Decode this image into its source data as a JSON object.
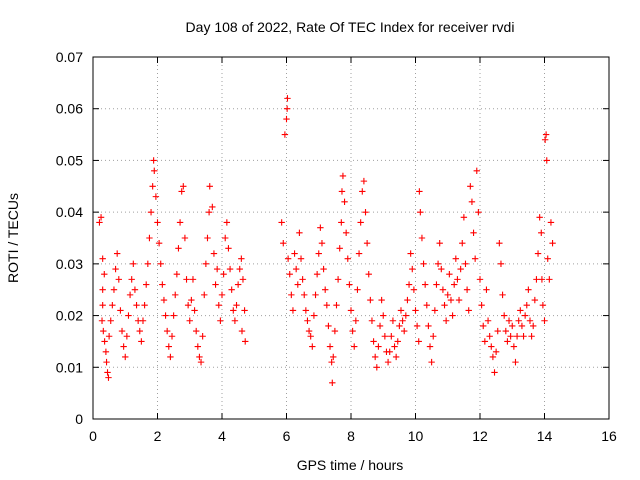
{
  "chart_data": {
    "type": "scatter",
    "title": "Day 108 of 2022, Rate Of TEC Index for receiver rvdi",
    "xlabel": "GPS time / hours",
    "ylabel": "ROTI / TECUs",
    "xlim": [
      0,
      16
    ],
    "ylim": [
      0,
      0.07
    ],
    "xticks": [
      0,
      2,
      4,
      6,
      8,
      10,
      12,
      14,
      16
    ],
    "yticks": [
      0,
      0.01,
      0.02,
      0.03,
      0.04,
      0.05,
      0.06,
      0.07
    ],
    "xtick_labels": [
      "0",
      "2",
      "4",
      "6",
      "8",
      "10",
      "12",
      "14",
      "16"
    ],
    "ytick_labels": [
      "0",
      "0.01",
      "0.02",
      "0.03",
      "0.04",
      "0.05",
      "0.06",
      "0.07"
    ],
    "grid": true,
    "marker": "plus",
    "color": "#ff0000",
    "series": [
      {
        "name": "ROTI",
        "points": [
          [
            0.2,
            0.038
          ],
          [
            0.25,
            0.039
          ],
          [
            0.3,
            0.031
          ],
          [
            0.35,
            0.028
          ],
          [
            0.3,
            0.025
          ],
          [
            0.3,
            0.022
          ],
          [
            0.28,
            0.019
          ],
          [
            0.32,
            0.017
          ],
          [
            0.36,
            0.015
          ],
          [
            0.4,
            0.013
          ],
          [
            0.42,
            0.011
          ],
          [
            0.45,
            0.009
          ],
          [
            0.48,
            0.008
          ],
          [
            0.5,
            0.016
          ],
          [
            0.55,
            0.019
          ],
          [
            0.6,
            0.022
          ],
          [
            0.65,
            0.025
          ],
          [
            0.7,
            0.029
          ],
          [
            0.75,
            0.032
          ],
          [
            0.8,
            0.027
          ],
          [
            0.85,
            0.021
          ],
          [
            0.9,
            0.017
          ],
          [
            0.95,
            0.014
          ],
          [
            1.0,
            0.012
          ],
          [
            1.05,
            0.016
          ],
          [
            1.1,
            0.02
          ],
          [
            1.15,
            0.024
          ],
          [
            1.2,
            0.027
          ],
          [
            1.25,
            0.03
          ],
          [
            1.3,
            0.025
          ],
          [
            1.35,
            0.022
          ],
          [
            1.4,
            0.019
          ],
          [
            1.45,
            0.017
          ],
          [
            1.5,
            0.015
          ],
          [
            1.55,
            0.019
          ],
          [
            1.6,
            0.022
          ],
          [
            1.65,
            0.026
          ],
          [
            1.7,
            0.03
          ],
          [
            1.75,
            0.035
          ],
          [
            1.8,
            0.04
          ],
          [
            1.85,
            0.045
          ],
          [
            1.88,
            0.05
          ],
          [
            1.9,
            0.048
          ],
          [
            1.95,
            0.043
          ],
          [
            2.0,
            0.038
          ],
          [
            2.05,
            0.034
          ],
          [
            2.1,
            0.03
          ],
          [
            2.15,
            0.026
          ],
          [
            2.2,
            0.023
          ],
          [
            2.25,
            0.02
          ],
          [
            2.3,
            0.017
          ],
          [
            2.35,
            0.014
          ],
          [
            2.4,
            0.012
          ],
          [
            2.45,
            0.016
          ],
          [
            2.5,
            0.02
          ],
          [
            2.55,
            0.024
          ],
          [
            2.6,
            0.028
          ],
          [
            2.65,
            0.033
          ],
          [
            2.7,
            0.038
          ],
          [
            2.75,
            0.044
          ],
          [
            2.8,
            0.045
          ],
          [
            2.85,
            0.035
          ],
          [
            2.9,
            0.027
          ],
          [
            2.95,
            0.022
          ],
          [
            3.0,
            0.019
          ],
          [
            3.05,
            0.023
          ],
          [
            3.1,
            0.027
          ],
          [
            3.15,
            0.021
          ],
          [
            3.2,
            0.017
          ],
          [
            3.25,
            0.014
          ],
          [
            3.3,
            0.012
          ],
          [
            3.35,
            0.011
          ],
          [
            3.4,
            0.016
          ],
          [
            3.45,
            0.024
          ],
          [
            3.5,
            0.03
          ],
          [
            3.55,
            0.035
          ],
          [
            3.6,
            0.04
          ],
          [
            3.62,
            0.045
          ],
          [
            3.7,
            0.041
          ],
          [
            3.75,
            0.032
          ],
          [
            3.8,
            0.026
          ],
          [
            3.85,
            0.029
          ],
          [
            3.9,
            0.022
          ],
          [
            3.95,
            0.019
          ],
          [
            4.0,
            0.024
          ],
          [
            4.05,
            0.028
          ],
          [
            4.1,
            0.035
          ],
          [
            4.15,
            0.038
          ],
          [
            4.2,
            0.033
          ],
          [
            4.25,
            0.029
          ],
          [
            4.3,
            0.025
          ],
          [
            4.35,
            0.021
          ],
          [
            4.4,
            0.019
          ],
          [
            4.45,
            0.022
          ],
          [
            4.5,
            0.026
          ],
          [
            4.55,
            0.029
          ],
          [
            4.6,
            0.031
          ],
          [
            4.62,
            0.017
          ],
          [
            4.65,
            0.027
          ],
          [
            4.7,
            0.021
          ],
          [
            4.72,
            0.015
          ],
          [
            5.85,
            0.038
          ],
          [
            5.9,
            0.034
          ],
          [
            5.95,
            0.055
          ],
          [
            6.0,
            0.058
          ],
          [
            6.02,
            0.06
          ],
          [
            6.03,
            0.062
          ],
          [
            6.05,
            0.031
          ],
          [
            6.1,
            0.028
          ],
          [
            6.15,
            0.024
          ],
          [
            6.2,
            0.021
          ],
          [
            6.25,
            0.032
          ],
          [
            6.3,
            0.029
          ],
          [
            6.35,
            0.026
          ],
          [
            6.4,
            0.036
          ],
          [
            6.45,
            0.031
          ],
          [
            6.5,
            0.027
          ],
          [
            6.55,
            0.024
          ],
          [
            6.6,
            0.021
          ],
          [
            6.65,
            0.019
          ],
          [
            6.7,
            0.017
          ],
          [
            6.75,
            0.016
          ],
          [
            6.8,
            0.014
          ],
          [
            6.85,
            0.02
          ],
          [
            6.9,
            0.024
          ],
          [
            6.95,
            0.028
          ],
          [
            7.0,
            0.032
          ],
          [
            7.05,
            0.037
          ],
          [
            7.1,
            0.034
          ],
          [
            7.15,
            0.029
          ],
          [
            7.2,
            0.025
          ],
          [
            7.25,
            0.022
          ],
          [
            7.3,
            0.018
          ],
          [
            7.35,
            0.014
          ],
          [
            7.4,
            0.011
          ],
          [
            7.42,
            0.007
          ],
          [
            7.45,
            0.012
          ],
          [
            7.5,
            0.017
          ],
          [
            7.55,
            0.022
          ],
          [
            7.6,
            0.027
          ],
          [
            7.65,
            0.033
          ],
          [
            7.7,
            0.038
          ],
          [
            7.72,
            0.044
          ],
          [
            7.75,
            0.047
          ],
          [
            7.8,
            0.042
          ],
          [
            7.85,
            0.036
          ],
          [
            7.9,
            0.031
          ],
          [
            7.95,
            0.026
          ],
          [
            8.0,
            0.021
          ],
          [
            8.05,
            0.017
          ],
          [
            8.1,
            0.014
          ],
          [
            8.15,
            0.019
          ],
          [
            8.2,
            0.025
          ],
          [
            8.25,
            0.032
          ],
          [
            8.3,
            0.038
          ],
          [
            8.35,
            0.044
          ],
          [
            8.4,
            0.046
          ],
          [
            8.45,
            0.04
          ],
          [
            8.5,
            0.034
          ],
          [
            8.55,
            0.028
          ],
          [
            8.6,
            0.023
          ],
          [
            8.65,
            0.019
          ],
          [
            8.7,
            0.015
          ],
          [
            8.75,
            0.012
          ],
          [
            8.8,
            0.01
          ],
          [
            8.85,
            0.014
          ],
          [
            8.9,
            0.018
          ],
          [
            8.95,
            0.023
          ],
          [
            9.0,
            0.02
          ],
          [
            9.05,
            0.016
          ],
          [
            9.1,
            0.013
          ],
          [
            9.15,
            0.011
          ],
          [
            9.2,
            0.013
          ],
          [
            9.25,
            0.016
          ],
          [
            9.3,
            0.019
          ],
          [
            9.35,
            0.014
          ],
          [
            9.4,
            0.012
          ],
          [
            9.45,
            0.015
          ],
          [
            9.5,
            0.018
          ],
          [
            9.55,
            0.021
          ],
          [
            9.6,
            0.019
          ],
          [
            9.65,
            0.017
          ],
          [
            9.7,
            0.02
          ],
          [
            9.75,
            0.023
          ],
          [
            9.8,
            0.026
          ],
          [
            9.85,
            0.032
          ],
          [
            9.9,
            0.029
          ],
          [
            9.95,
            0.025
          ],
          [
            10.0,
            0.021
          ],
          [
            10.05,
            0.018
          ],
          [
            10.1,
            0.015
          ],
          [
            10.12,
            0.044
          ],
          [
            10.15,
            0.04
          ],
          [
            10.2,
            0.035
          ],
          [
            10.25,
            0.03
          ],
          [
            10.3,
            0.026
          ],
          [
            10.35,
            0.022
          ],
          [
            10.4,
            0.018
          ],
          [
            10.45,
            0.014
          ],
          [
            10.5,
            0.011
          ],
          [
            10.55,
            0.016
          ],
          [
            10.6,
            0.021
          ],
          [
            10.65,
            0.026
          ],
          [
            10.7,
            0.03
          ],
          [
            10.75,
            0.034
          ],
          [
            10.8,
            0.029
          ],
          [
            10.85,
            0.025
          ],
          [
            10.9,
            0.022
          ],
          [
            10.95,
            0.019
          ],
          [
            11.0,
            0.024
          ],
          [
            11.05,
            0.028
          ],
          [
            11.1,
            0.023
          ],
          [
            11.15,
            0.02
          ],
          [
            11.2,
            0.026
          ],
          [
            11.25,
            0.031
          ],
          [
            11.3,
            0.027
          ],
          [
            11.35,
            0.023
          ],
          [
            11.4,
            0.029
          ],
          [
            11.45,
            0.034
          ],
          [
            11.5,
            0.039
          ],
          [
            11.55,
            0.03
          ],
          [
            11.6,
            0.025
          ],
          [
            11.65,
            0.021
          ],
          [
            11.7,
            0.045
          ],
          [
            11.75,
            0.042
          ],
          [
            11.8,
            0.036
          ],
          [
            11.85,
            0.031
          ],
          [
            11.9,
            0.048
          ],
          [
            11.95,
            0.04
          ],
          [
            12.0,
            0.027
          ],
          [
            12.05,
            0.022
          ],
          [
            12.1,
            0.018
          ],
          [
            12.15,
            0.015
          ],
          [
            12.2,
            0.025
          ],
          [
            12.25,
            0.019
          ],
          [
            12.3,
            0.016
          ],
          [
            12.35,
            0.014
          ],
          [
            12.4,
            0.012
          ],
          [
            12.45,
            0.009
          ],
          [
            12.5,
            0.013
          ],
          [
            12.55,
            0.017
          ],
          [
            12.6,
            0.034
          ],
          [
            12.65,
            0.03
          ],
          [
            12.7,
            0.024
          ],
          [
            12.75,
            0.02
          ],
          [
            12.8,
            0.017
          ],
          [
            12.85,
            0.015
          ],
          [
            12.9,
            0.019
          ],
          [
            12.95,
            0.016
          ],
          [
            13.0,
            0.018
          ],
          [
            13.05,
            0.014
          ],
          [
            13.1,
            0.011
          ],
          [
            13.15,
            0.016
          ],
          [
            13.2,
            0.019
          ],
          [
            13.25,
            0.021
          ],
          [
            13.3,
            0.018
          ],
          [
            13.35,
            0.016
          ],
          [
            13.4,
            0.02
          ],
          [
            13.45,
            0.022
          ],
          [
            13.5,
            0.025
          ],
          [
            13.55,
            0.019
          ],
          [
            13.6,
            0.016
          ],
          [
            13.65,
            0.018
          ],
          [
            13.7,
            0.023
          ],
          [
            13.75,
            0.027
          ],
          [
            13.8,
            0.032
          ],
          [
            13.85,
            0.039
          ],
          [
            13.9,
            0.036
          ],
          [
            13.92,
            0.027
          ],
          [
            13.95,
            0.022
          ],
          [
            14.0,
            0.019
          ],
          [
            14.02,
            0.054
          ],
          [
            14.05,
            0.055
          ],
          [
            14.07,
            0.05
          ],
          [
            14.1,
            0.031
          ],
          [
            14.15,
            0.027
          ],
          [
            14.2,
            0.038
          ],
          [
            14.25,
            0.034
          ]
        ]
      }
    ]
  }
}
